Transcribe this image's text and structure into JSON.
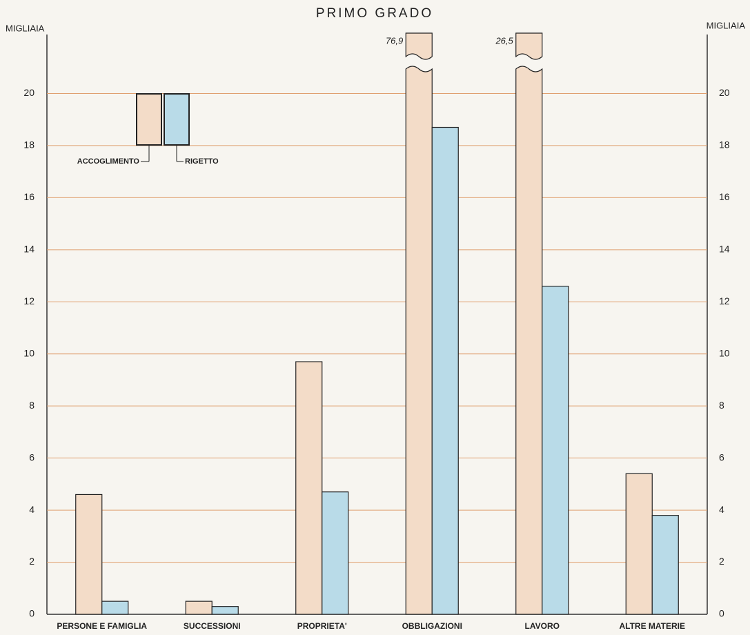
{
  "chart_data": {
    "type": "bar",
    "title": "PRIMO GRADO",
    "y_label": "MIGLIAIA",
    "y2_label": "MIGLIAIA",
    "categories": [
      "PERSONE E FAMIGLIA",
      "SUCCESSIONI",
      "PROPRIETA'",
      "OBBLIGAZIONI",
      "LAVORO",
      "ALTRE MATERIE"
    ],
    "series": [
      {
        "name": "ACCOGLIMENTO",
        "color": "#f3dcc8",
        "values": [
          4.6,
          0.5,
          9.7,
          76.9,
          26.5,
          5.4
        ],
        "value_labels": [
          null,
          null,
          null,
          "76,9",
          "26,5",
          null
        ]
      },
      {
        "name": "RIGETTO",
        "color": "#b9dbe8",
        "values": [
          0.5,
          0.3,
          4.7,
          18.7,
          12.6,
          3.8
        ]
      }
    ],
    "ylim": [
      0,
      22
    ],
    "yticks": [
      0,
      2,
      4,
      6,
      8,
      10,
      12,
      14,
      16,
      18,
      20
    ],
    "grid": true
  }
}
